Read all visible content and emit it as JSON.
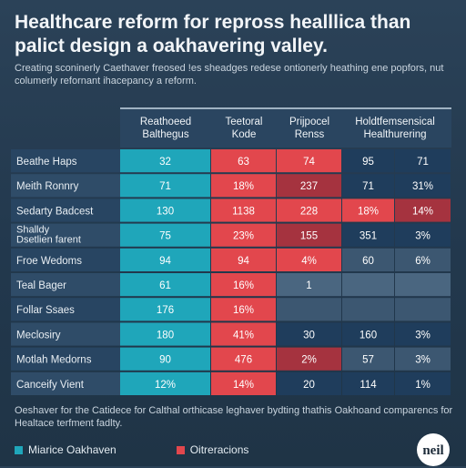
{
  "title": "Healthcare reform for repross healllica than palict design a oakhavering valley.",
  "subtitle": "Creating sconinerly Caethaver freosed !es sheadges redese ontionerly heathing ene popfors, nut columerly refornant ihacepancy a reform.",
  "caption": "Oeshaver for the Catidece for Calthal orthicase leghaver bydting thathis Oakhoand comparencs for Healtace terfment fadlty.",
  "legend": [
    {
      "label": "Miarice Oakhaven",
      "color": "#1fa6ba"
    },
    {
      "label": "Oitreracions",
      "color": "#e2474d"
    }
  ],
  "logo_text": "neil",
  "colors": {
    "teal": "#1fa6ba",
    "teal_dark": "#197f90",
    "red": "#e2474d",
    "red_dark": "#a5333f",
    "navy": "#1f3d5c",
    "slate": "#3c5771",
    "slate_light": "#4a6680"
  },
  "chart_data": {
    "type": "table",
    "columns": [
      "Reathoeed Balthegus",
      "Teetoral Kode",
      "Prijpocel Renss",
      "Holdtfemsensical Healthurering"
    ],
    "rows": [
      {
        "label": "Beathe Haps",
        "cells": [
          "32",
          "63",
          "74",
          "95",
          "71"
        ],
        "fills": [
          "teal",
          "red",
          "red",
          "navy",
          "navy"
        ]
      },
      {
        "label": "Meith Ronnry",
        "cells": [
          "71",
          "18%",
          "237",
          "71",
          "31%"
        ],
        "fills": [
          "teal",
          "red",
          "red_dark",
          "navy",
          "navy"
        ]
      },
      {
        "label": "Sedarty Badcest",
        "cells": [
          "130",
          "1138",
          "228",
          "18%",
          "14%"
        ],
        "fills": [
          "teal",
          "red",
          "red",
          "red",
          "red_dark"
        ]
      },
      {
        "label": "Shalldy Dsetlien farent",
        "cells": [
          "75",
          "23%",
          "155",
          "351",
          "3%"
        ],
        "fills": [
          "teal",
          "red",
          "red_dark",
          "navy",
          "navy"
        ]
      },
      {
        "label": "Froe Wedoms",
        "cells": [
          "94",
          "94",
          "4%",
          "60",
          "6%"
        ],
        "fills": [
          "teal",
          "red",
          "red",
          "slate",
          "slate"
        ]
      },
      {
        "label": "Teal Bager",
        "cells": [
          "61",
          "16%",
          "1",
          "",
          ""
        ],
        "fills": [
          "teal",
          "red",
          "slate_light",
          "slate_light",
          "slate_light"
        ]
      },
      {
        "label": "Follar Ssaes",
        "cells": [
          "176",
          "16%",
          "",
          "",
          ""
        ],
        "fills": [
          "teal",
          "red",
          "slate",
          "slate",
          "slate"
        ]
      },
      {
        "label": "Meclosiry",
        "cells": [
          "180",
          "41%",
          "30",
          "160",
          "3%"
        ],
        "fills": [
          "teal",
          "red",
          "navy",
          "navy",
          "navy"
        ]
      },
      {
        "label": "Motlah Medorns",
        "cells": [
          "90",
          "476",
          "2%",
          "57",
          "3%"
        ],
        "fills": [
          "teal",
          "red",
          "red_dark",
          "slate",
          "slate"
        ]
      },
      {
        "label": "Canceify Vient",
        "cells": [
          "12%",
          "14%",
          "20",
          "114",
          "1%"
        ],
        "fills": [
          "teal",
          "red",
          "navy",
          "navy",
          "navy"
        ]
      }
    ]
  }
}
